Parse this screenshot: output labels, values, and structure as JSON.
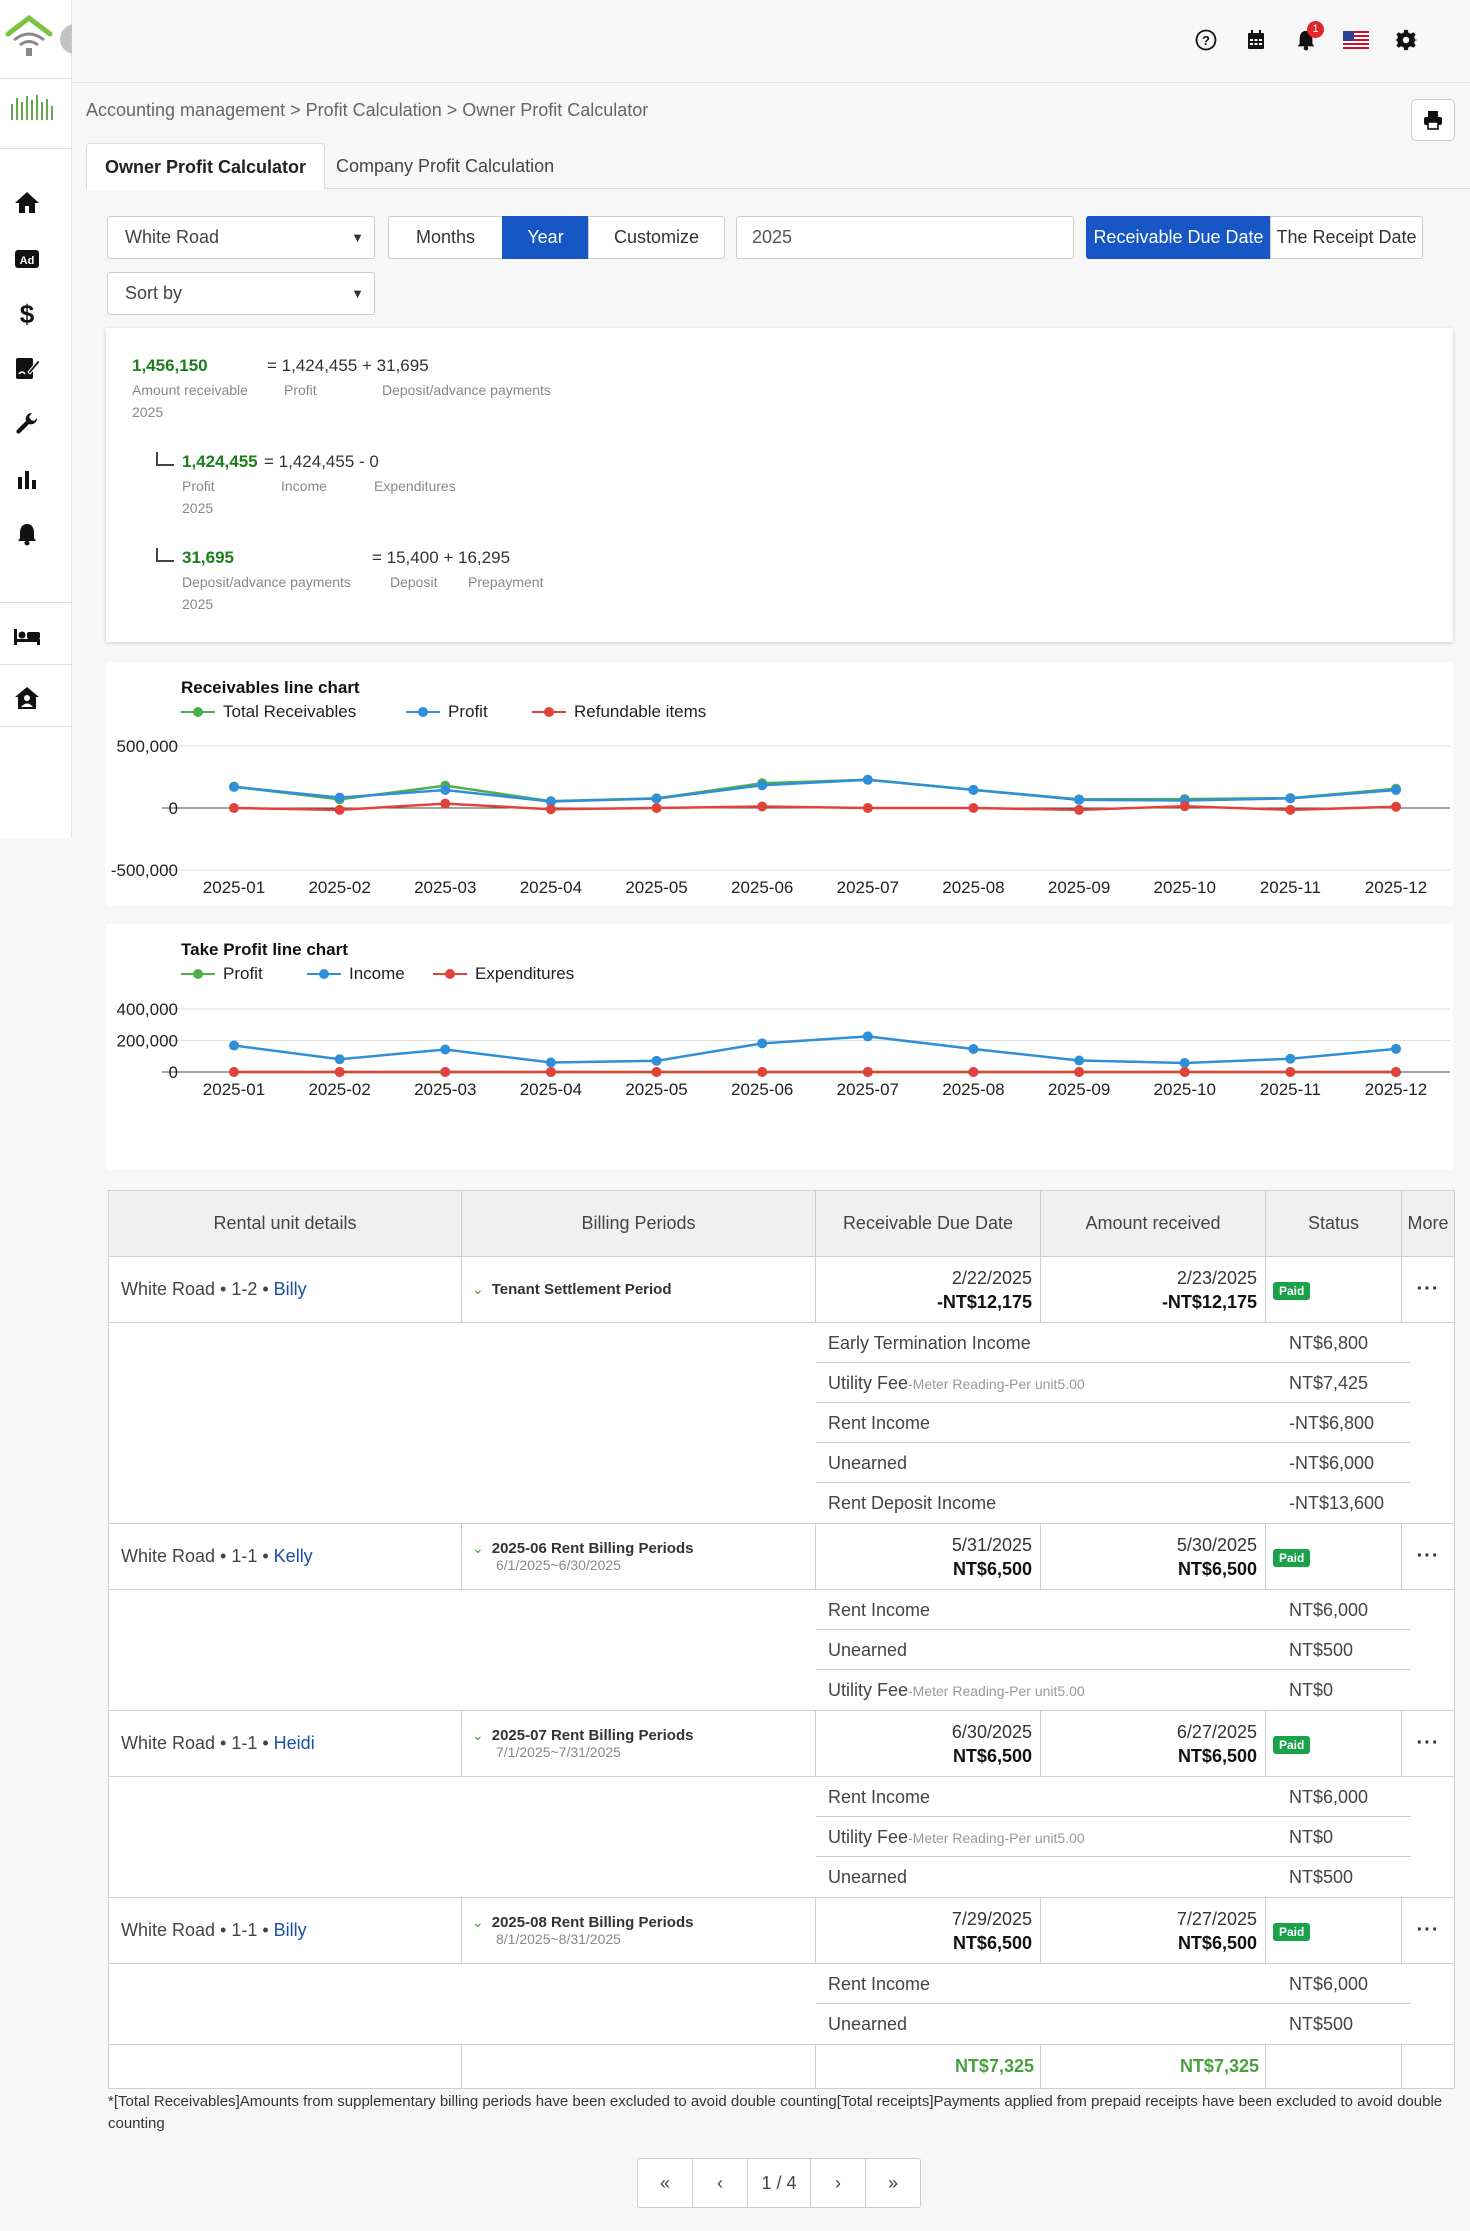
{
  "header": {
    "notification_count": "1",
    "icons": [
      "help-icon",
      "calendar-icon",
      "bell-icon",
      "us-flag-icon",
      "gear-icon"
    ]
  },
  "breadcrumb": "Accounting management > Profit Calculation > Owner Profit Calculator",
  "tabs": [
    "Owner Profit Calculator",
    "Company Profit Calculation"
  ],
  "filters": {
    "property": "White Road",
    "sort": "Sort by",
    "period_options": [
      "Months",
      "Year",
      "Customize"
    ],
    "period_selected": "Year",
    "year": "2025",
    "date_basis": [
      "Receivable Due Date",
      "The Receipt Date"
    ],
    "date_basis_selected": "Receivable Due Date"
  },
  "summary": {
    "receivable": {
      "total": "1,456,150",
      "label": "Amount receivable",
      "year": "2025",
      "eq": "= 1,424,455 + 31,695",
      "profit_label": "Profit",
      "deposit_label": "Deposit/advance payments"
    },
    "profit": {
      "total": "1,424,455",
      "label": "Profit",
      "year": "2025",
      "eq": "= 1,424,455 - 0",
      "income_label": "Income",
      "exp_label": "Expenditures"
    },
    "deposit": {
      "total": "31,695",
      "label": "Deposit/advance payments",
      "year": "2025",
      "eq": "= 15,400 + 16,295",
      "dep_label": "Deposit",
      "pre_label": "Prepayment"
    }
  },
  "chart_data": [
    {
      "type": "line",
      "title": "Receivables line chart",
      "x": [
        "2025-01",
        "2025-02",
        "2025-03",
        "2025-04",
        "2025-05",
        "2025-06",
        "2025-07",
        "2025-08",
        "2025-09",
        "2025-10",
        "2025-11",
        "2025-12"
      ],
      "series": [
        {
          "name": "Total Receivables",
          "color": "#4cae4c",
          "values": [
            172000,
            70000,
            180000,
            55000,
            78000,
            200000,
            228000,
            146000,
            70000,
            72000,
            80000,
            155000
          ]
        },
        {
          "name": "Profit",
          "color": "#2f8fd8",
          "values": [
            170000,
            84000,
            145000,
            52000,
            76000,
            183000,
            228000,
            146000,
            66000,
            60000,
            78000,
            145000
          ]
        },
        {
          "name": "Refundable items",
          "color": "#e0433a",
          "values": [
            0,
            -15000,
            35000,
            -10000,
            0,
            12000,
            0,
            0,
            -15000,
            14000,
            -15000,
            10000
          ]
        }
      ],
      "yticks": [
        "500,000",
        "0",
        "-500,000"
      ],
      "ylim": [
        -500000,
        500000
      ],
      "grid": true,
      "legend": "top-left"
    },
    {
      "type": "line",
      "title": "Take Profit line chart",
      "x": [
        "2025-01",
        "2025-02",
        "2025-03",
        "2025-04",
        "2025-05",
        "2025-06",
        "2025-07",
        "2025-08",
        "2025-09",
        "2025-10",
        "2025-11",
        "2025-12"
      ],
      "series": [
        {
          "name": "Profit",
          "color": "#4cae4c",
          "values": [
            0,
            0,
            0,
            0,
            0,
            0,
            0,
            0,
            0,
            0,
            0,
            0
          ]
        },
        {
          "name": "Income",
          "color": "#2f8fd8",
          "values": [
            168000,
            81000,
            143000,
            60000,
            71000,
            182000,
            226000,
            146000,
            73000,
            57000,
            84000,
            147000
          ]
        },
        {
          "name": "Expenditures",
          "color": "#e0433a",
          "values": [
            0,
            0,
            0,
            0,
            0,
            0,
            0,
            0,
            0,
            0,
            0,
            0
          ]
        }
      ],
      "yticks": [
        "400,000",
        "200,000",
        "0"
      ],
      "ylim": [
        0,
        400000
      ],
      "grid": true,
      "legend": "top-left"
    }
  ],
  "table": {
    "headers": [
      "Rental unit details",
      "Billing Periods",
      "Receivable Due Date",
      "Amount received",
      "Status",
      "More"
    ],
    "rows": [
      {
        "unit": "White Road • 1-2 • ",
        "tenant": "Billy",
        "period": "Tenant Settlement Period",
        "range": "",
        "due_date": "2/22/2025",
        "due_amount": "-NT$12,175",
        "recv_date": "2/23/2025",
        "recv_amount": "-NT$12,175",
        "status": "Paid",
        "details": [
          {
            "label": "Early Termination Income",
            "sub": "",
            "value": "NT$6,800"
          },
          {
            "label": "Utility Fee",
            "sub": "-Meter Reading-Per unit5.00",
            "value": "NT$7,425"
          },
          {
            "label": "Rent Income",
            "sub": "",
            "value": "-NT$6,800"
          },
          {
            "label": "Unearned",
            "sub": "",
            "value": "-NT$6,000"
          },
          {
            "label": "Rent Deposit Income",
            "sub": "",
            "value": "-NT$13,600"
          }
        ]
      },
      {
        "unit": "White Road • 1-1 • ",
        "tenant": "Kelly",
        "period": "2025-06 Rent Billing Periods",
        "range": "6/1/2025~6/30/2025",
        "due_date": "5/31/2025",
        "due_amount": "NT$6,500",
        "recv_date": "5/30/2025",
        "recv_amount": "NT$6,500",
        "status": "Paid",
        "details": [
          {
            "label": "Rent Income",
            "sub": "",
            "value": "NT$6,000"
          },
          {
            "label": "Unearned",
            "sub": "",
            "value": "NT$500"
          },
          {
            "label": "Utility Fee",
            "sub": "-Meter Reading-Per unit5.00",
            "value": "NT$0"
          }
        ]
      },
      {
        "unit": "White Road • 1-1 • ",
        "tenant": "Heidi",
        "period": "2025-07 Rent Billing Periods",
        "range": "7/1/2025~7/31/2025",
        "due_date": "6/30/2025",
        "due_amount": "NT$6,500",
        "recv_date": "6/27/2025",
        "recv_amount": "NT$6,500",
        "status": "Paid",
        "details": [
          {
            "label": "Rent Income",
            "sub": "",
            "value": "NT$6,000"
          },
          {
            "label": "Utility Fee",
            "sub": "-Meter Reading-Per unit5.00",
            "value": "NT$0"
          },
          {
            "label": "Unearned",
            "sub": "",
            "value": "NT$500"
          }
        ]
      },
      {
        "unit": "White Road • 1-1 • ",
        "tenant": "Billy",
        "period": "2025-08 Rent Billing Periods",
        "range": "8/1/2025~8/31/2025",
        "due_date": "7/29/2025",
        "due_amount": "NT$6,500",
        "recv_date": "7/27/2025",
        "recv_amount": "NT$6,500",
        "status": "Paid",
        "details": [
          {
            "label": "Rent Income",
            "sub": "",
            "value": "NT$6,000"
          },
          {
            "label": "Unearned",
            "sub": "",
            "value": "NT$500"
          }
        ]
      }
    ],
    "totals": {
      "due": "NT$7,325",
      "received": "NT$7,325"
    }
  },
  "footnote": "*[Total Receivables]Amounts from supplementary billing periods have been excluded to avoid double counting[Total receipts]Payments applied from prepaid receipts have been excluded to avoid double counting",
  "pagination": {
    "first": "«",
    "prev": "‹",
    "current": "1 / 4",
    "next": "›",
    "last": "»"
  }
}
